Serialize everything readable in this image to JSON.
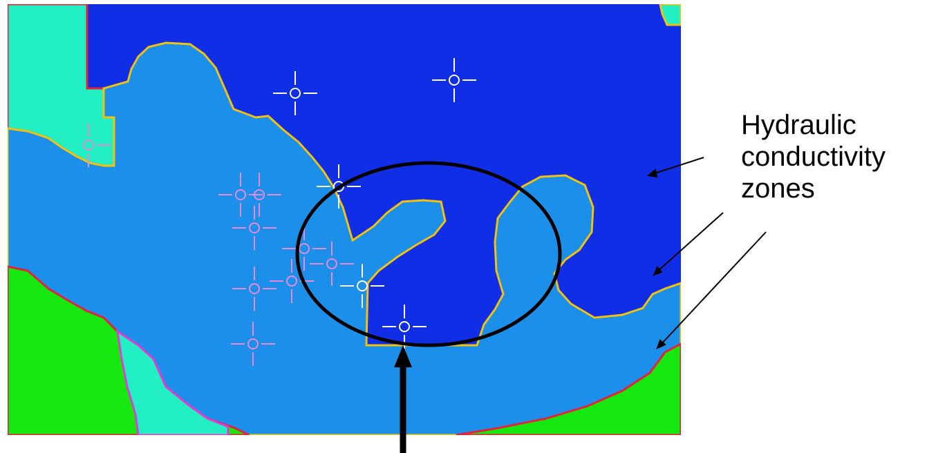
{
  "annotation": {
    "label_lines": [
      "Hydraulic",
      "conductivity",
      "zones"
    ]
  },
  "colors": {
    "background": "#ffffff",
    "zone_dark_blue": "#0f2ee6",
    "zone_light_blue": "#1b8fea",
    "zone_cyan": "#22f0c4",
    "zone_green": "#14e80f",
    "boundary_yellow": "#f2c20c",
    "boundary_red": "#e8203a",
    "boundary_magenta": "#e33bd6",
    "well_marker_white": "#ffffff",
    "well_marker_pink": "#e98ad8",
    "ellipse_stroke": "#000000",
    "arrow_stroke": "#000000"
  },
  "legend": {
    "well_marker_icon": "well-crosshair-icon"
  }
}
